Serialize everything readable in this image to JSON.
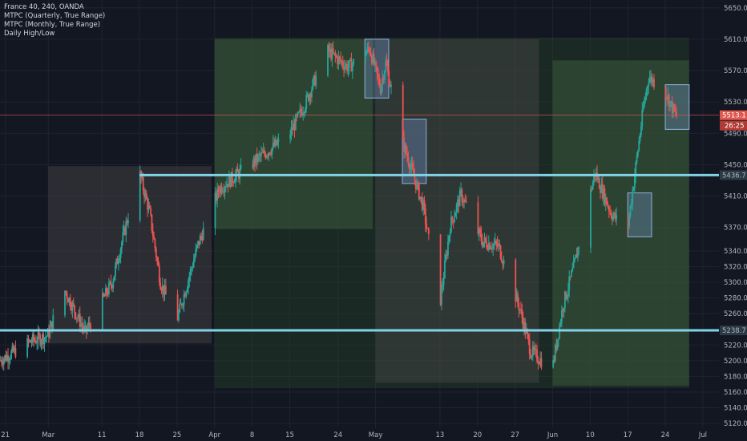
{
  "legend": {
    "title": "France 40, 240, OANDA",
    "lines": [
      "MTPC (Quarterly, True Range)",
      "MTPC (Monthly, True Range)",
      "Daily High/Low"
    ]
  },
  "colors": {
    "background": "#131722",
    "grid": "#1f2330",
    "up": "#26a69a",
    "down": "#ef5350",
    "level": "#7fd3e6",
    "price_line": "#e0574f",
    "quarter_zone": "#2a4a2c",
    "month_zone_green": "#3a5a3c",
    "month_zone_grey": "#4a4a4a",
    "box_blue": "#6f94c9"
  },
  "chart_data": {
    "type": "candlestick",
    "symbol": "France 40",
    "interval": "240",
    "source": "OANDA",
    "y_range": [
      5115,
      5660
    ],
    "y_ticks": [
      5120,
      5140,
      5160,
      5180,
      5200,
      5220,
      5240,
      5260,
      5280,
      5300,
      5320,
      5340,
      5370,
      5410,
      5450,
      5490,
      5530,
      5570,
      5610,
      5650
    ],
    "y_tick_labels": [
      "5120.0",
      "5140.0",
      "5160.0",
      "5180.0",
      "5200.0",
      "5220.0",
      "5240.0",
      "5260.0",
      "5280.0",
      "5300.0",
      "5320.0",
      "5340.0",
      "5370.0",
      "5410.0",
      "5450.0",
      "5490.0",
      "5530.0",
      "5570.0",
      "5610.0",
      "5650.0"
    ],
    "x_range": [
      "2019-02-20",
      "2019-07-04"
    ],
    "x_ticks": [
      {
        "date": "2019-02-21",
        "label": "21"
      },
      {
        "date": "2019-03-01",
        "label": "Mar"
      },
      {
        "date": "2019-03-11",
        "label": "11"
      },
      {
        "date": "2019-03-18",
        "label": "18"
      },
      {
        "date": "2019-03-25",
        "label": "25"
      },
      {
        "date": "2019-04-01",
        "label": "Apr"
      },
      {
        "date": "2019-04-08",
        "label": "8"
      },
      {
        "date": "2019-04-15",
        "label": "15"
      },
      {
        "date": "2019-04-24",
        "label": "24"
      },
      {
        "date": "2019-05-01",
        "label": "May"
      },
      {
        "date": "2019-05-13",
        "label": "13"
      },
      {
        "date": "2019-05-20",
        "label": "20"
      },
      {
        "date": "2019-05-27",
        "label": "27"
      },
      {
        "date": "2019-06-03",
        "label": "Jun"
      },
      {
        "date": "2019-06-10",
        "label": "10"
      },
      {
        "date": "2019-06-17",
        "label": "17"
      },
      {
        "date": "2019-06-24",
        "label": "24"
      },
      {
        "date": "2019-07-01",
        "label": "Jul"
      }
    ],
    "horizontal_levels": [
      {
        "value": 5436.7,
        "label": "5436.7"
      },
      {
        "value": 5238.7,
        "label": "5238.7"
      }
    ],
    "last_price": {
      "value": 5513.1,
      "label": "5513.1",
      "countdown": "26:25"
    },
    "zones": [
      {
        "kind": "quarter",
        "x0": "2019-04-01",
        "x1": "2019-06-28",
        "y0": 5165,
        "y1": 5612
      },
      {
        "kind": "month-grey",
        "x0": "2019-03-01",
        "x1": "2019-03-31",
        "y0": 5222,
        "y1": 5448
      },
      {
        "kind": "month-green",
        "x0": "2019-04-01",
        "x1": "2019-04-30",
        "y0": 5368,
        "y1": 5610
      },
      {
        "kind": "month-grey",
        "x0": "2019-05-01",
        "x1": "2019-05-31",
        "y0": 5172,
        "y1": 5610
      },
      {
        "kind": "month-green",
        "x0": "2019-06-03",
        "x1": "2019-06-28",
        "y0": 5168,
        "y1": 5583
      },
      {
        "kind": "week",
        "x0": "2019-04-29",
        "x1": "2019-05-03",
        "y0": 5535,
        "y1": 5610
      },
      {
        "kind": "week",
        "x0": "2019-05-06",
        "x1": "2019-05-10",
        "y0": 5426,
        "y1": 5508
      },
      {
        "kind": "week",
        "x0": "2019-06-17",
        "x1": "2019-06-21",
        "y0": 5358,
        "y1": 5414
      },
      {
        "kind": "week",
        "x0": "2019-06-24",
        "x1": "2019-06-28",
        "y0": 5495,
        "y1": 5552
      }
    ],
    "anchors": [
      {
        "date": "2019-02-20",
        "price": 5200
      },
      {
        "date": "2019-02-26",
        "price": 5225
      },
      {
        "date": "2019-03-01",
        "price": 5232
      },
      {
        "date": "2019-03-04",
        "price": 5292
      },
      {
        "date": "2019-03-08",
        "price": 5236
      },
      {
        "date": "2019-03-13",
        "price": 5300
      },
      {
        "date": "2019-03-18",
        "price": 5442
      },
      {
        "date": "2019-03-20",
        "price": 5388
      },
      {
        "date": "2019-03-22",
        "price": 5300
      },
      {
        "date": "2019-03-25",
        "price": 5250
      },
      {
        "date": "2019-03-29",
        "price": 5348
      },
      {
        "date": "2019-04-02",
        "price": 5420
      },
      {
        "date": "2019-04-10",
        "price": 5462
      },
      {
        "date": "2019-04-15",
        "price": 5488
      },
      {
        "date": "2019-04-18",
        "price": 5528
      },
      {
        "date": "2019-04-22",
        "price": 5596
      },
      {
        "date": "2019-04-26",
        "price": 5574
      },
      {
        "date": "2019-04-30",
        "price": 5598
      },
      {
        "date": "2019-05-02",
        "price": 5548
      },
      {
        "date": "2019-05-03",
        "price": 5580
      },
      {
        "date": "2019-05-06",
        "price": 5482
      },
      {
        "date": "2019-05-08",
        "price": 5440
      },
      {
        "date": "2019-05-10",
        "price": 5396
      },
      {
        "date": "2019-05-13",
        "price": 5268
      },
      {
        "date": "2019-05-15",
        "price": 5372
      },
      {
        "date": "2019-05-17",
        "price": 5412
      },
      {
        "date": "2019-05-21",
        "price": 5352
      },
      {
        "date": "2019-05-24",
        "price": 5346
      },
      {
        "date": "2019-05-28",
        "price": 5266
      },
      {
        "date": "2019-05-30",
        "price": 5212
      },
      {
        "date": "2019-06-03",
        "price": 5188
      },
      {
        "date": "2019-06-05",
        "price": 5270
      },
      {
        "date": "2019-06-07",
        "price": 5318
      },
      {
        "date": "2019-06-11",
        "price": 5440
      },
      {
        "date": "2019-06-14",
        "price": 5388
      },
      {
        "date": "2019-06-17",
        "price": 5364
      },
      {
        "date": "2019-06-20",
        "price": 5522
      },
      {
        "date": "2019-06-21",
        "price": 5562
      },
      {
        "date": "2019-06-24",
        "price": 5545
      },
      {
        "date": "2019-06-26",
        "price": 5513
      }
    ]
  }
}
